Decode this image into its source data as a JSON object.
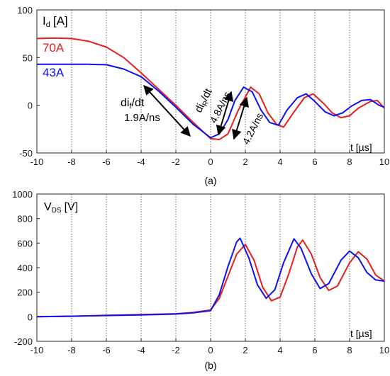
{
  "chart_data": [
    {
      "type": "line",
      "panel_label": "(a)",
      "ylabel_main": "I",
      "ylabel_sub": "d",
      "ylabel_unit": "[A]",
      "xlabel": "t [µs]",
      "xlim": [
        -10,
        10
      ],
      "ylim": [
        -50,
        100
      ],
      "xticks": [
        -10,
        -8,
        -6,
        -4,
        -2,
        0,
        2,
        4,
        6,
        8,
        10
      ],
      "yticks": [
        -50,
        0,
        50,
        100
      ],
      "grid": "vertical dotted",
      "series": [
        {
          "name": "70A",
          "color": "#e81e1e",
          "points": [
            [
              -10,
              70
            ],
            [
              -9,
              70.5
            ],
            [
              -8,
              70
            ],
            [
              -7,
              67
            ],
            [
              -6,
              61
            ],
            [
              -5,
              50
            ],
            [
              -4,
              34
            ],
            [
              -3,
              17
            ],
            [
              -2,
              0
            ],
            [
              -1,
              -18
            ],
            [
              0,
              -35
            ],
            [
              0.5,
              -36
            ],
            [
              1,
              -30
            ],
            [
              1.6,
              -5
            ],
            [
              2.3,
              19
            ],
            [
              2.8,
              12
            ],
            [
              3.3,
              -8
            ],
            [
              3.8,
              -20
            ],
            [
              4.2,
              -23
            ],
            [
              4.8,
              -7
            ],
            [
              5.4,
              8
            ],
            [
              5.9,
              12
            ],
            [
              6.5,
              2
            ],
            [
              7,
              -8
            ],
            [
              7.5,
              -13
            ],
            [
              8,
              -11
            ],
            [
              8.5,
              -3
            ],
            [
              9.2,
              4
            ],
            [
              9.6,
              5
            ],
            [
              10,
              -3
            ]
          ]
        },
        {
          "name": "43A",
          "color": "#1010ee",
          "points": [
            [
              -10,
              43
            ],
            [
              -9,
              43
            ],
            [
              -8,
              43
            ],
            [
              -7,
              43
            ],
            [
              -6,
              42.5
            ],
            [
              -5,
              38
            ],
            [
              -4,
              30
            ],
            [
              -3,
              15
            ],
            [
              -2,
              -2
            ],
            [
              -1,
              -20
            ],
            [
              0,
              -34
            ],
            [
              0.5,
              -30
            ],
            [
              1,
              -15
            ],
            [
              1.4,
              5
            ],
            [
              1.9,
              19
            ],
            [
              2.4,
              14
            ],
            [
              2.9,
              -5
            ],
            [
              3.4,
              -18
            ],
            [
              3.9,
              -21
            ],
            [
              4.4,
              -5
            ],
            [
              5,
              8
            ],
            [
              5.5,
              12
            ],
            [
              6,
              4
            ],
            [
              6.6,
              -7
            ],
            [
              7.1,
              -11
            ],
            [
              7.6,
              -8
            ],
            [
              8.1,
              -1
            ],
            [
              8.7,
              5
            ],
            [
              9.2,
              6
            ],
            [
              9.7,
              0
            ],
            [
              10,
              -2
            ]
          ]
        }
      ],
      "annotations": {
        "dif_label_main": "di",
        "dif_label_sub": "f",
        "dif_label_rest": "/dt",
        "dif_value": "1.9A/ns",
        "dir_label_main": "di",
        "dir_label_sub": "R",
        "dir_label_rest": "/dt",
        "dir_blue_value": "4.8A/ns",
        "dir_red_value": "4.2A/ns"
      }
    },
    {
      "type": "line",
      "panel_label": "(b)",
      "ylabel_main": "V",
      "ylabel_sub": "DS",
      "ylabel_unit": "[V]",
      "xlabel": "t [µs]",
      "xlim": [
        -10,
        10
      ],
      "ylim": [
        -200,
        1000
      ],
      "xticks": [
        -10,
        -8,
        -6,
        -4,
        -2,
        0,
        2,
        4,
        6,
        8,
        10
      ],
      "yticks": [
        -200,
        0,
        200,
        400,
        600,
        800,
        1000
      ],
      "grid": "vertical dotted",
      "series": [
        {
          "name": "red",
          "color": "#e81e1e",
          "points": [
            [
              -10,
              0
            ],
            [
              -8,
              5
            ],
            [
              -6,
              12
            ],
            [
              -4,
              18
            ],
            [
              -2,
              25
            ],
            [
              -1,
              35
            ],
            [
              0,
              55
            ],
            [
              0.5,
              150
            ],
            [
              1,
              330
            ],
            [
              1.5,
              510
            ],
            [
              2,
              590
            ],
            [
              2.5,
              460
            ],
            [
              3,
              240
            ],
            [
              3.5,
              130
            ],
            [
              4,
              160
            ],
            [
              4.5,
              350
            ],
            [
              5,
              570
            ],
            [
              5.3,
              625
            ],
            [
              5.8,
              510
            ],
            [
              6.3,
              320
            ],
            [
              6.8,
              215
            ],
            [
              7.3,
              250
            ],
            [
              8,
              440
            ],
            [
              8.5,
              530
            ],
            [
              9,
              470
            ],
            [
              9.5,
              340
            ],
            [
              10,
              290
            ]
          ]
        },
        {
          "name": "blue",
          "color": "#1010ee",
          "points": [
            [
              -10,
              0
            ],
            [
              -8,
              4
            ],
            [
              -6,
              10
            ],
            [
              -4,
              15
            ],
            [
              -2,
              22
            ],
            [
              -1,
              32
            ],
            [
              0,
              50
            ],
            [
              0.5,
              180
            ],
            [
              1,
              410
            ],
            [
              1.5,
              610
            ],
            [
              1.7,
              640
            ],
            [
              2.2,
              480
            ],
            [
              2.7,
              260
            ],
            [
              3.2,
              150
            ],
            [
              3.7,
              220
            ],
            [
              4.2,
              440
            ],
            [
              4.8,
              635
            ],
            [
              5.2,
              560
            ],
            [
              5.8,
              350
            ],
            [
              6.3,
              230
            ],
            [
              6.8,
              270
            ],
            [
              7.5,
              460
            ],
            [
              8,
              535
            ],
            [
              8.5,
              480
            ],
            [
              9,
              360
            ],
            [
              9.5,
              300
            ],
            [
              10,
              290
            ]
          ]
        }
      ]
    }
  ]
}
